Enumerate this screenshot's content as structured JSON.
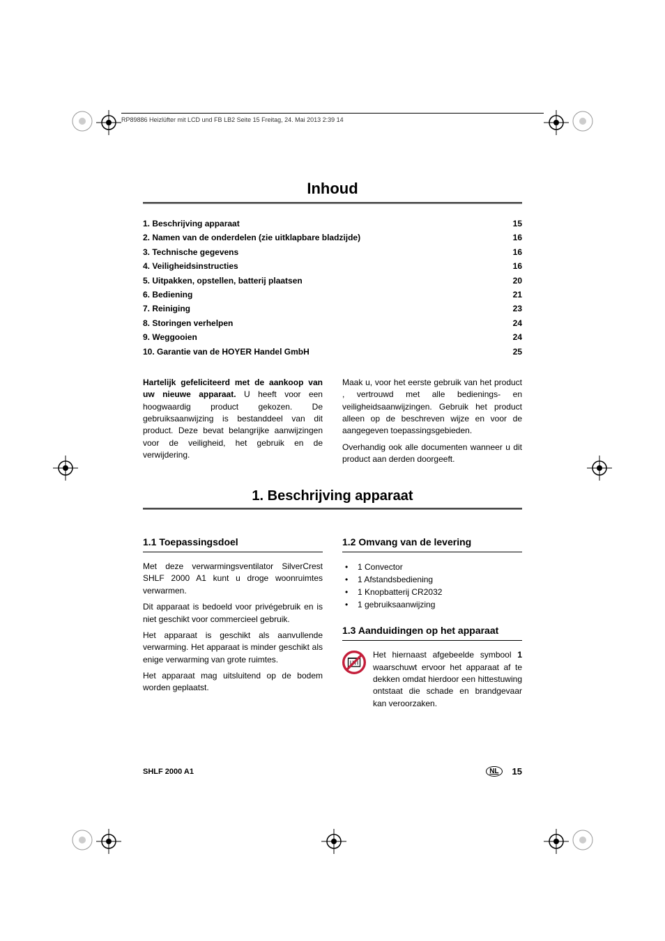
{
  "header_meta": "RP89886 Heizlüfter mit LCD und FB LB2  Seite 15  Freitag, 24. Mai 2013  2:39 14",
  "main_title": "Inhoud",
  "toc": [
    {
      "num": "1.",
      "title": "Beschrijving apparaat",
      "page": "15"
    },
    {
      "num": "2.",
      "title": "Namen van de onderdelen (zie uitklapbare bladzijde)",
      "page": "16"
    },
    {
      "num": "3.",
      "title": "Technische gegevens",
      "page": "16"
    },
    {
      "num": "4.",
      "title": "Veiligheidsinstructies",
      "page": "16"
    },
    {
      "num": "5.",
      "title": "Uitpakken, opstellen, batterij plaatsen",
      "page": "20"
    },
    {
      "num": "6.",
      "title": "Bediening",
      "page": "21"
    },
    {
      "num": "7.",
      "title": "Reiniging",
      "page": "23"
    },
    {
      "num": "8.",
      "title": "Storingen verhelpen",
      "page": "24"
    },
    {
      "num": "9.",
      "title": "Weggooien",
      "page": "24"
    },
    {
      "num": "10.",
      "title": "Garantie van de HOYER Handel GmbH",
      "page": "25"
    }
  ],
  "intro": {
    "bold": "Hartelijk gefeliciteerd met de aankoop van uw nieuwe apparaat.",
    "left_rest": "U heeft voor een hoogwaardig product gekozen. De gebruiksaanwijzing is bestanddeel van dit product. Deze bevat belangrijke aanwijzingen voor de veiligheid, het gebruik en de verwijdering.",
    "right_p1": "Maak u, voor het eerste gebruik van het product , vertrouwd met alle bedienings- en veiligheidsaanwijzingen. Gebruik het product alleen op de beschreven wijze en voor de aangegeven toepassingsgebieden.",
    "right_p2": "Overhandig ook alle documenten wanneer u dit product aan derden doorgeeft."
  },
  "section1": {
    "title": "1. Beschrijving apparaat",
    "sub1_1": {
      "title": "1.1 Toepassingsdoel",
      "p1": "Met deze verwarmingsventilator SilverCrest SHLF 2000 A1 kunt u droge woonruimtes verwarmen.",
      "p2": "Dit apparaat is bedoeld voor privégebruik en is niet geschikt voor commercieel gebruik.",
      "p3": "Het apparaat is geschikt als aanvullende verwarming. Het apparaat is minder geschikt als enige verwarming van grote ruimtes.",
      "p4": "Het apparaat mag uitsluitend op de bodem worden geplaatst."
    },
    "sub1_2": {
      "title": "1.2 Omvang van de levering",
      "items": [
        "1 Convector",
        "1 Afstandsbediening",
        "1 Knopbatterij CR2032",
        "1 gebruiksaanwijzing"
      ]
    },
    "sub1_3": {
      "title": "1.3 Aanduidingen op het apparaat",
      "text_pre": "Het hiernaast afgebeelde symbool ",
      "text_bold": "1",
      "text_post": " waarschuwt ervoor het apparaat af te dekken omdat hierdoor een hittestuwing ontstaat die schade en brandgevaar kan veroorzaken."
    }
  },
  "footer": {
    "model": "SHLF 2000 A1",
    "lang": "NL",
    "page": "15"
  },
  "colors": {
    "text": "#000000",
    "bg": "#ffffff",
    "gray": "#888888",
    "warn_red": "#c41e3a"
  }
}
